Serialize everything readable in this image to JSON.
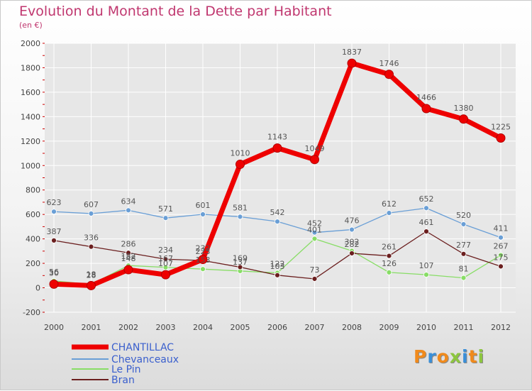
{
  "title": "Evolution du Montant de la Dette par Habitant",
  "subtitle": "(en €)",
  "logo_text": "Proxiti",
  "colors": {
    "title": "#c0376f",
    "axis_text": "#444444",
    "grid": "#ffffff",
    "tick_marks": "#cc0000"
  },
  "chart_data": {
    "type": "line",
    "x": [
      "2000",
      "2001",
      "2002",
      "2003",
      "2004",
      "2005",
      "2006",
      "2007",
      "2008",
      "2009",
      "2010",
      "2011",
      "2012"
    ],
    "ylim": [
      -200,
      2000
    ],
    "yticks": [
      -200,
      0,
      200,
      400,
      600,
      800,
      1000,
      1200,
      1400,
      1600,
      1800,
      2000
    ],
    "grid": true,
    "legend_position": "bottom-left",
    "series": [
      {
        "name": "CHANTILLAC",
        "color": "#ee0000",
        "width": 7,
        "marker": 6,
        "values": [
          30,
          18,
          148,
          107,
          232,
          1010,
          1143,
          1049,
          1837,
          1746,
          1466,
          1380,
          1225
        ]
      },
      {
        "name": "Chevanceaux",
        "color": "#6a9fd6",
        "width": 1.3,
        "marker": 3.5,
        "values": [
          623,
          607,
          634,
          571,
          601,
          581,
          542,
          452,
          476,
          612,
          652,
          520,
          411
        ]
      },
      {
        "name": "Le Pin",
        "color": "#88dd66",
        "width": 1.3,
        "marker": 3.5,
        "values": [
          56,
          28,
          182,
          167,
          153,
          137,
          122,
          401,
          302,
          126,
          107,
          81,
          267
        ]
      },
      {
        "name": "Bran",
        "color": "#6b1f1f",
        "width": 1.3,
        "marker": 3.5,
        "values": [
          387,
          336,
          286,
          234,
          223,
          169,
          103,
          73,
          282,
          261,
          461,
          277,
          175
        ]
      }
    ]
  }
}
